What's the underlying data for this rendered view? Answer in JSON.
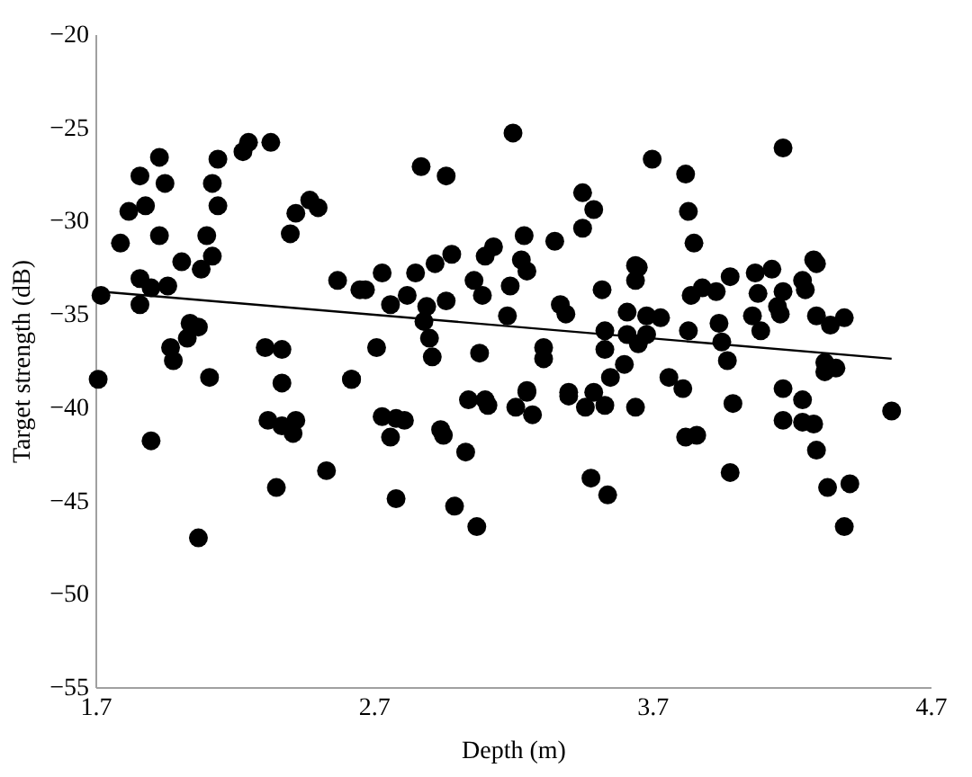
{
  "chart_data": {
    "type": "scatter",
    "xlabel": "Depth (m)",
    "ylabel": "Target strength (dB)",
    "xlim": [
      1.7,
      4.7
    ],
    "xticks": [
      1.7,
      2.7,
      3.7,
      4.7
    ],
    "ylim": [
      -55,
      -20
    ],
    "yticks": [
      -55,
      -50,
      -45,
      -40,
      -35,
      -30,
      -25,
      -20
    ],
    "grid": false,
    "marker": "circle",
    "series": [
      {
        "color": "#000000",
        "x": [
          1.72,
          1.71,
          1.79,
          1.82,
          1.86,
          1.88,
          1.93,
          1.95,
          1.93,
          1.86,
          1.86,
          1.9,
          1.96,
          2.01,
          2.08,
          2.12,
          2.1,
          2.14,
          2.12,
          2.14,
          2.23,
          2.25,
          2.33,
          2.42,
          2.4,
          2.47,
          2.5,
          2.04,
          2.07,
          2.03,
          1.97,
          1.98,
          2.11,
          2.31,
          2.37,
          2.37,
          2.62,
          2.57,
          2.65,
          1.9,
          2.32,
          2.37,
          2.42,
          2.41,
          2.35,
          2.53,
          2.07,
          3.2,
          2.87,
          2.96,
          3.45,
          3.49,
          3.45,
          3.24,
          3.35,
          3.13,
          3.1,
          2.98,
          2.92,
          3.23,
          3.25,
          2.85,
          2.73,
          2.67,
          2.82,
          2.76,
          3.06,
          3.09,
          3.19,
          2.96,
          2.89,
          2.88,
          2.9,
          2.91,
          3.18,
          3.37,
          3.39,
          3.52,
          3.61,
          3.64,
          3.64,
          3.53,
          3.61,
          3.53,
          3.6,
          3.55,
          3.31,
          3.31,
          3.08,
          2.71,
          2.62,
          3.4,
          3.25,
          3.49,
          2.73,
          2.78,
          2.81,
          2.76,
          2.94,
          2.95,
          3.03,
          3.04,
          3.1,
          3.11,
          3.21,
          3.27,
          3.25,
          3.4,
          3.46,
          3.53,
          3.64,
          2.78,
          2.99,
          3.07,
          3.48,
          3.54,
          4.17,
          3.7,
          3.82,
          3.83,
          3.85,
          3.65,
          3.84,
          3.88,
          3.93,
          3.98,
          4.07,
          4.13,
          4.08,
          4.17,
          4.15,
          4.16,
          4.24,
          4.25,
          4.28,
          4.29,
          4.06,
          4.09,
          4.29,
          4.34,
          4.39,
          3.68,
          3.73,
          3.68,
          3.65,
          3.83,
          3.94,
          3.95,
          3.97,
          3.76,
          3.81,
          3.99,
          4.17,
          4.24,
          4.32,
          4.36,
          4.32,
          4.56,
          3.82,
          3.86,
          3.98,
          4.17,
          4.24,
          4.28,
          4.29,
          4.33,
          4.41,
          4.39
        ],
        "values": [
          -34.0,
          -38.5,
          -31.2,
          -29.5,
          -27.6,
          -29.2,
          -26.6,
          -28.0,
          -30.8,
          -33.1,
          -34.5,
          -33.6,
          -33.5,
          -32.2,
          -32.6,
          -31.9,
          -30.8,
          -29.2,
          -28.0,
          -26.7,
          -26.3,
          -25.8,
          -25.8,
          -29.6,
          -30.7,
          -28.9,
          -29.3,
          -35.5,
          -35.7,
          -36.3,
          -36.8,
          -37.5,
          -38.4,
          -36.8,
          -36.9,
          -38.7,
          -38.5,
          -33.2,
          -33.7,
          -41.8,
          -40.7,
          -41.0,
          -40.7,
          -41.4,
          -44.3,
          -43.4,
          -47.0,
          -25.3,
          -27.1,
          -27.6,
          -28.5,
          -29.4,
          -30.4,
          -30.8,
          -31.1,
          -31.4,
          -31.9,
          -31.8,
          -32.3,
          -32.1,
          -32.7,
          -32.8,
          -32.8,
          -33.7,
          -34.0,
          -34.5,
          -33.2,
          -34.0,
          -33.5,
          -34.3,
          -34.6,
          -35.4,
          -36.3,
          -37.3,
          -35.1,
          -34.5,
          -35.0,
          -33.7,
          -34.9,
          -33.2,
          -32.4,
          -35.9,
          -36.1,
          -36.9,
          -37.7,
          -38.4,
          -36.8,
          -37.4,
          -37.1,
          -36.8,
          -38.5,
          -39.2,
          -39.1,
          -39.2,
          -40.5,
          -40.6,
          -40.7,
          -41.6,
          -41.2,
          -41.5,
          -42.4,
          -39.6,
          -39.6,
          -39.9,
          -40.0,
          -40.4,
          -39.2,
          -39.4,
          -40.0,
          -39.9,
          -40.0,
          -44.9,
          -45.3,
          -46.4,
          -43.8,
          -44.7,
          -26.1,
          -26.7,
          -27.5,
          -29.5,
          -31.2,
          -32.5,
          -34.0,
          -33.6,
          -33.8,
          -33.0,
          -32.8,
          -32.6,
          -33.9,
          -33.8,
          -34.6,
          -35.0,
          -33.2,
          -33.7,
          -32.1,
          -32.3,
          -35.1,
          -35.9,
          -35.1,
          -35.6,
          -35.2,
          -35.1,
          -35.2,
          -36.1,
          -36.6,
          -35.9,
          -35.5,
          -36.5,
          -37.5,
          -38.4,
          -39.0,
          -39.8,
          -39.0,
          -39.6,
          -37.6,
          -37.9,
          -38.1,
          -40.2,
          -41.6,
          -41.5,
          -43.5,
          -40.7,
          -40.8,
          -40.9,
          -42.3,
          -44.3,
          -44.1,
          -46.4
        ]
      },
      {
        "type": "line",
        "color": "#000000",
        "marker": "none",
        "line_style": "solid",
        "x": [
          1.72,
          4.56
        ],
        "values": [
          -33.8,
          -37.4
        ]
      }
    ]
  }
}
